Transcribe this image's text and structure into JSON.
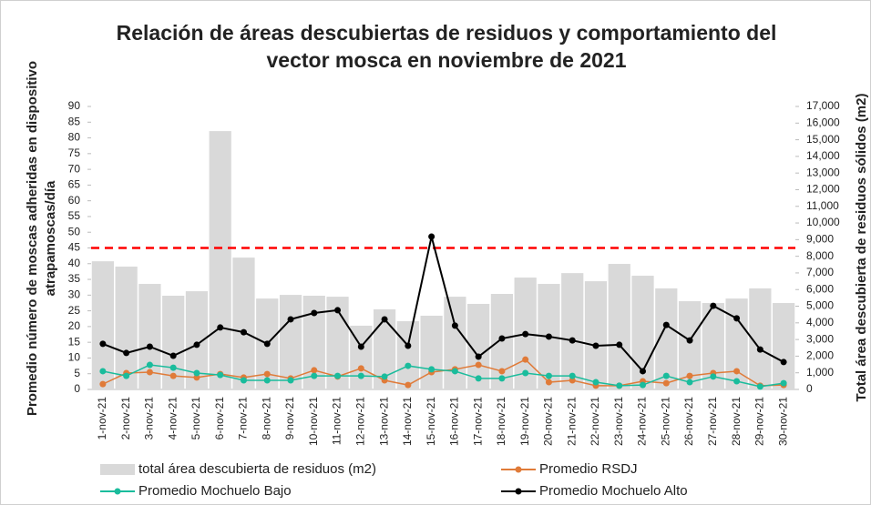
{
  "chart_data": {
    "type": "bar_line",
    "title": [
      "Relación de áreas descubiertas de residuos y comportamiento del",
      "vector mosca en noviembre de 2021"
    ],
    "ylabel": [
      "Promedio número de moscas adheridas en dispositivo",
      "atrapamoscas/día"
    ],
    "y2label": "Total área descubierta de residuos sólidos (m2)",
    "categories": [
      "1-nov-21",
      "2-nov-21",
      "3-nov-21",
      "4-nov-21",
      "5-nov-21",
      "6-nov-21",
      "7-nov-21",
      "8-nov-21",
      "9-nov-21",
      "10-nov-21",
      "11-nov-21",
      "12-nov-21",
      "13-nov-21",
      "14-nov-21",
      "15-nov-21",
      "16-nov-21",
      "17-nov-21",
      "18-nov-21",
      "19-nov-21",
      "20-nov-21",
      "21-nov-21",
      "22-nov-21",
      "23-nov-21",
      "24-nov-21",
      "25-nov-21",
      "26-nov-21",
      "27-nov-21",
      "28-nov-21",
      "29-nov-21",
      "30-nov-21"
    ],
    "series": [
      {
        "name": "total área descubierta de residuos (m2)",
        "kind": "bar",
        "axis": "y2",
        "color": "#d9d9d9",
        "values": [
          7700,
          7380,
          6340,
          5630,
          5900,
          15520,
          7920,
          5460,
          5680,
          5630,
          5570,
          3830,
          4810,
          4100,
          4430,
          5570,
          5140,
          5740,
          6720,
          6340,
          6990,
          6500,
          7540,
          6830,
          6070,
          5300,
          5190,
          5460,
          6070,
          5190
        ]
      },
      {
        "name": "Promedio RSDJ",
        "kind": "line",
        "color": "#e07b39",
        "values": [
          1.7,
          5.2,
          5.5,
          4.3,
          3.8,
          4.9,
          3.8,
          4.9,
          3.5,
          6.1,
          4.1,
          6.7,
          2.9,
          1.4,
          5.5,
          6.4,
          7.8,
          5.8,
          9.5,
          2.3,
          2.9,
          1.2,
          1.2,
          2.6,
          2.0,
          4.3,
          5.2,
          5.8,
          1.2,
          1.4
        ]
      },
      {
        "name": "Promedio Mochuelo Bajo",
        "kind": "line",
        "color": "#1abc9c",
        "values": [
          5.8,
          4.3,
          7.8,
          6.9,
          5.2,
          4.6,
          2.9,
          2.9,
          2.9,
          4.3,
          4.3,
          4.3,
          4.1,
          7.5,
          6.4,
          5.8,
          3.5,
          3.5,
          5.2,
          4.3,
          4.3,
          2.3,
          1.2,
          1.4,
          4.3,
          2.3,
          4.1,
          2.6,
          0.9,
          2.0
        ]
      },
      {
        "name": "Promedio Mochuelo Alto",
        "kind": "line",
        "color": "#000000",
        "values": [
          14.5,
          11.6,
          13.6,
          10.7,
          14.2,
          19.7,
          18.2,
          14.5,
          22.3,
          24.3,
          25.2,
          13.6,
          22.3,
          13.9,
          48.6,
          20.3,
          10.4,
          16.2,
          17.6,
          16.8,
          15.6,
          13.9,
          14.2,
          5.8,
          20.5,
          15.6,
          26.6,
          22.6,
          12.7,
          8.7
        ]
      }
    ],
    "threshold": {
      "value": 45,
      "color": "#ff0000"
    },
    "ylim": [
      0,
      90
    ],
    "yticks": [
      0,
      5,
      10,
      15,
      20,
      25,
      30,
      35,
      40,
      45,
      50,
      55,
      60,
      65,
      70,
      75,
      80,
      85,
      90
    ],
    "y2lim": [
      0,
      17000
    ],
    "y2ticks": [
      0,
      {
        "value": 1000,
        "label": "1,000"
      },
      {
        "value": 2000,
        "label": "2,000"
      },
      {
        "value": 3000,
        "label": "3,000"
      },
      {
        "value": 4000,
        "label": "4,000"
      },
      {
        "value": 5000,
        "label": "5,000"
      },
      {
        "value": 6000,
        "label": "6,000"
      },
      {
        "value": 7000,
        "label": "7,000"
      },
      {
        "value": 8000,
        "label": "8,000"
      },
      {
        "value": 9000,
        "label": "9,000"
      },
      {
        "value": 10000,
        "label": "10,000"
      },
      {
        "value": 11000,
        "label": "11,000"
      },
      {
        "value": 12000,
        "label": "12,000"
      },
      {
        "value": 13000,
        "label": "13,000"
      },
      {
        "value": 14000,
        "label": "14,000"
      },
      {
        "value": 15000,
        "label": "15,000"
      },
      {
        "value": 16000,
        "label": "16,000"
      },
      {
        "value": 17000,
        "label": "17,000"
      }
    ],
    "grid": false,
    "legend": "bottom"
  }
}
